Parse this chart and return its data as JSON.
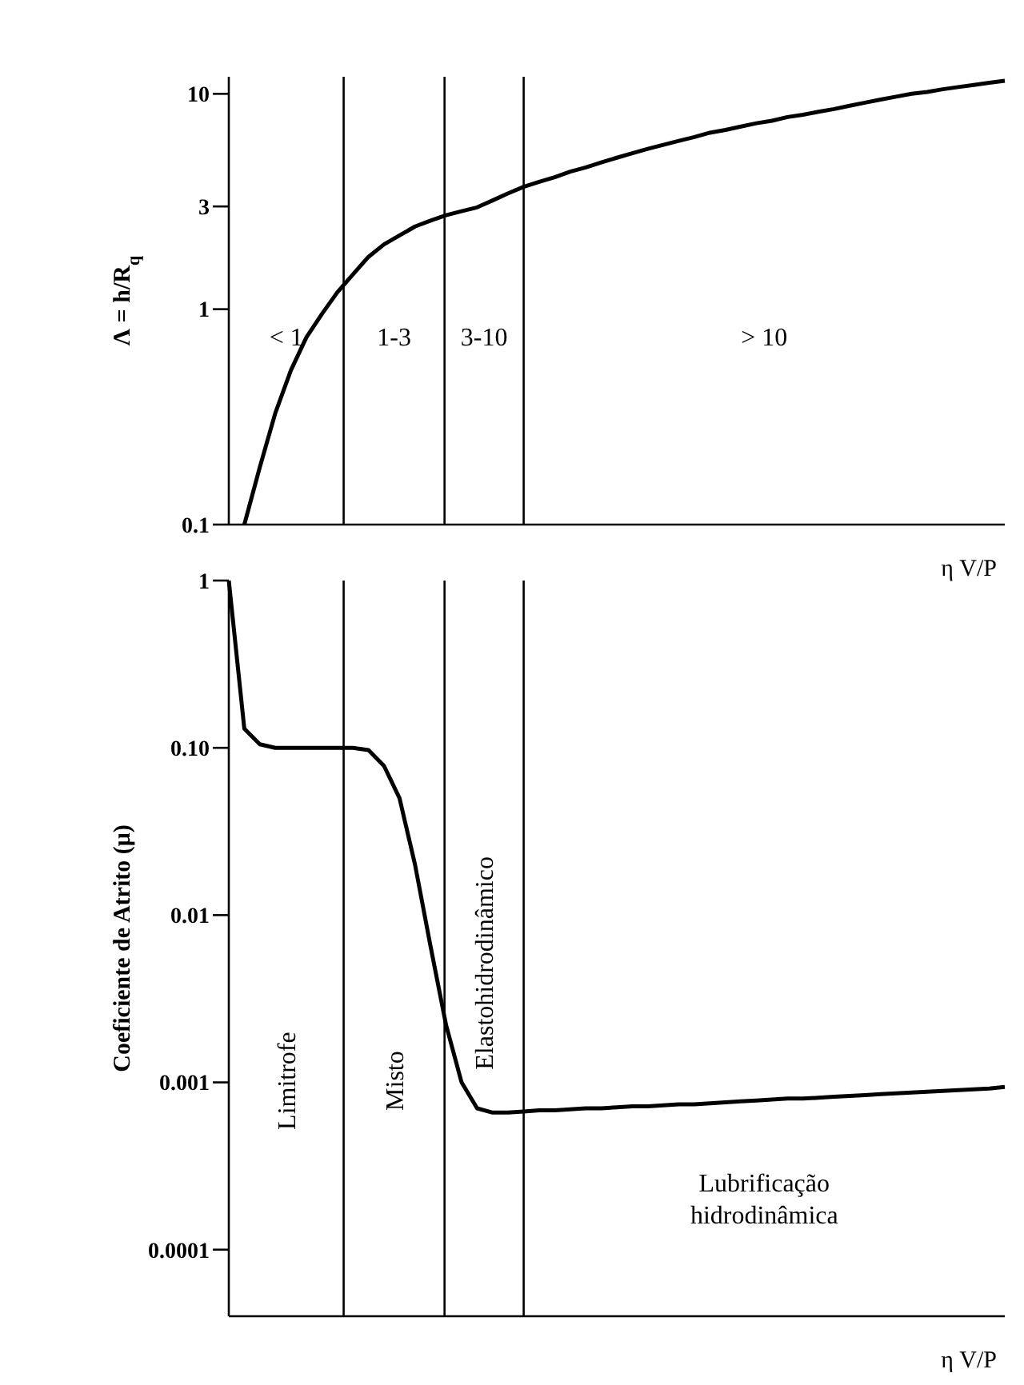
{
  "chart_data": [
    {
      "type": "line",
      "ylabel": "Λ = h/R$_{q}$",
      "xlabel": "η V/P",
      "log": "y",
      "tick_labels": "y",
      "ylim": [
        0.1,
        12
      ],
      "yticks": [
        0.1,
        1,
        3,
        10
      ],
      "categories": [
        null,
        null,
        null,
        null,
        null,
        null,
        null,
        null,
        null,
        null,
        null,
        null,
        null,
        null,
        null,
        null,
        null,
        null,
        null,
        null,
        null,
        null,
        null,
        null,
        null,
        null,
        null,
        null,
        null,
        null,
        null,
        null,
        null,
        null,
        null,
        null,
        null,
        null,
        null,
        null,
        null,
        null,
        null,
        null,
        null,
        null,
        null,
        null,
        null,
        null,
        null
      ],
      "series": [
        {
          "color": "#000000",
          "values": [
            null,
            0.1,
            0.185,
            0.33,
            0.52,
            0.74,
            0.95,
            1.2,
            1.45,
            1.75,
            2.0,
            2.2,
            2.42,
            2.58,
            2.73,
            2.85,
            2.97,
            3.2,
            3.45,
            3.7,
            3.9,
            4.1,
            4.35,
            4.55,
            4.8,
            5.05,
            5.3,
            5.55,
            5.8,
            6.05,
            6.3,
            6.6,
            6.8,
            7.05,
            7.3,
            7.5,
            7.8,
            8.0,
            8.25,
            8.5,
            8.8,
            9.1,
            9.4,
            9.7,
            10.0,
            10.2,
            10.5,
            10.75,
            11.0,
            11.25,
            11.5
          ]
        }
      ],
      "grid": "x",
      "annotations": [
        "< 1",
        "1-3",
        "3-10",
        "> 10"
      ]
    },
    {
      "type": "line",
      "ylabel": "Coeficiente de Atrito (μ)",
      "xlabel": "η V/P",
      "log": "y",
      "tick_labels": "y",
      "ylim": [
        4e-05,
        1
      ],
      "yticks": [
        0.0001,
        0.001,
        0.01,
        {
          "value": 0.1,
          "label": "0.10"
        },
        1
      ],
      "categories": [
        null,
        null,
        null,
        null,
        null,
        null,
        null,
        null,
        null,
        null,
        null,
        null,
        null,
        null,
        null,
        null,
        null,
        null,
        null,
        null,
        null,
        null,
        null,
        null,
        null,
        null,
        null,
        null,
        null,
        null,
        null,
        null,
        null,
        null,
        null,
        null,
        null,
        null,
        null,
        null,
        null,
        null,
        null,
        null,
        null,
        null,
        null,
        null,
        null,
        null,
        null
      ],
      "series": [
        {
          "color": "#000000",
          "values": [
            1,
            0.13,
            0.105,
            0.1,
            0.1,
            0.1,
            0.1,
            0.1,
            0.1,
            0.097,
            0.078,
            0.05,
            0.02,
            0.0065,
            0.0022,
            0.001,
            0.0007,
            0.00066,
            0.00066,
            0.00067,
            0.00068,
            0.00068,
            0.00069,
            0.0007,
            0.0007,
            0.00071,
            0.00072,
            0.00072,
            0.00073,
            0.00074,
            0.00074,
            0.00075,
            0.00076,
            0.00077,
            0.00078,
            0.00079,
            0.0008,
            0.0008,
            0.00081,
            0.00082,
            0.00083,
            0.00084,
            0.00085,
            0.00086,
            0.00087,
            0.00088,
            0.00089,
            0.0009,
            0.00091,
            0.00092,
            0.00094
          ]
        }
      ],
      "grid": "x",
      "annotations": [
        "Limitrofe",
        "Misto",
        "Elastohidrodinâmico",
        "Lubrificação hidrodinâmica"
      ]
    }
  ]
}
